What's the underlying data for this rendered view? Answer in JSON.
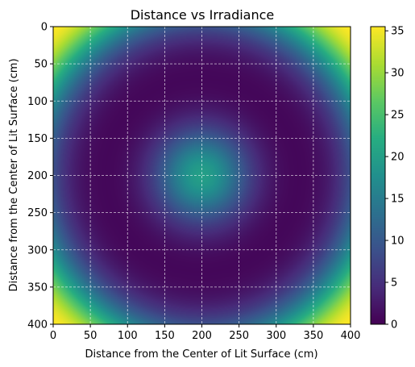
{
  "chart_data": {
    "type": "heatmap",
    "title": "Distance vs Irradiance",
    "xlabel": "Distance from the Center of Lit Surface (cm)",
    "ylabel": "Distance from the Center of Lit Surface (cm)",
    "xlim": [
      0,
      400
    ],
    "ylim": [
      0,
      400
    ],
    "y_inverted": true,
    "x_ticks": [
      "0",
      "50",
      "100",
      "150",
      "200",
      "250",
      "300",
      "350",
      "400"
    ],
    "y_ticks": [
      "0",
      "50",
      "100",
      "150",
      "200",
      "250",
      "300",
      "350",
      "400"
    ],
    "colorbar": {
      "colormap": "viridis",
      "range": [
        0,
        35.5
      ],
      "ticks": [
        "0",
        "5",
        "10",
        "15",
        "20",
        "25",
        "30",
        "35"
      ]
    },
    "grid": true,
    "grid_style": "dashed",
    "field": {
      "center": [
        200,
        200
      ],
      "center_peak": 20,
      "center_falloff_radius": 45,
      "ring_radius": 282.8,
      "ring_peak": 35.5,
      "ring_width": 50
    }
  }
}
